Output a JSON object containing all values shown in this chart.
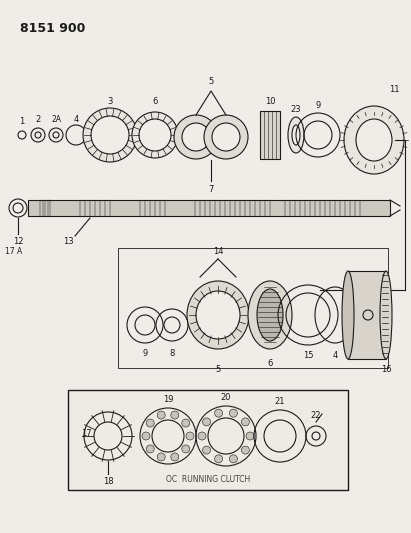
{
  "title": "8151 900",
  "bg_color": "#f0ede8",
  "line_color": "#1a1a1a",
  "box_caption": "OC  RUNNING CLUTCH",
  "figsize": [
    4.11,
    5.33
  ],
  "dpi": 100
}
